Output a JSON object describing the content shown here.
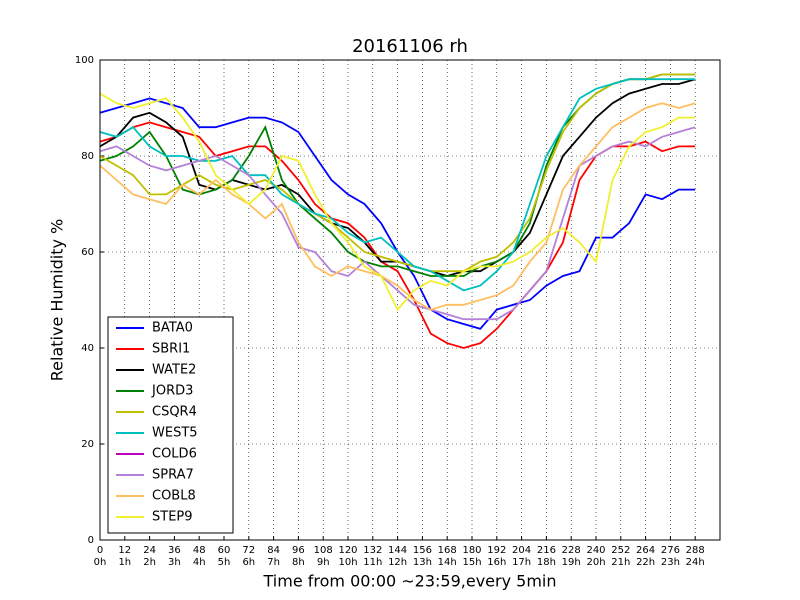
{
  "chart_data": {
    "type": "line",
    "title": "20161106 rh",
    "x_label": "Time from 00:00 ~23:59,every 5min",
    "y_label": "Relative Humidity %",
    "x": [
      0,
      8,
      16,
      24,
      32,
      40,
      48,
      56,
      64,
      72,
      80,
      88,
      96,
      104,
      112,
      120,
      128,
      136,
      144,
      152,
      160,
      168,
      176,
      184,
      192,
      200,
      208,
      216,
      224,
      232,
      240,
      248,
      256,
      264,
      272,
      280,
      288
    ],
    "series": [
      {
        "name": "BATA0",
        "color": "#0000ff",
        "values": [
          89,
          90,
          91,
          92,
          91,
          90,
          86,
          86,
          87,
          88,
          88,
          87,
          85,
          80,
          75,
          72,
          70,
          66,
          60,
          55,
          48,
          46,
          45,
          44,
          48,
          49,
          50,
          53,
          55,
          56,
          63,
          63,
          66,
          72,
          71,
          73,
          73
        ]
      },
      {
        "name": "SBRI1",
        "color": "#ff0000",
        "values": [
          83,
          84,
          86,
          87,
          86,
          85,
          84,
          80,
          81,
          82,
          82,
          79,
          75,
          70,
          67,
          66,
          63,
          58,
          56,
          50,
          43,
          41,
          40,
          41,
          44,
          48,
          52,
          56,
          62,
          75,
          80,
          82,
          82,
          83,
          81,
          82,
          82
        ]
      },
      {
        "name": "WATE2",
        "color": "#000000",
        "values": [
          82,
          84,
          88,
          89,
          87,
          84,
          74,
          73,
          75,
          74,
          73,
          74,
          72,
          68,
          66,
          65,
          62,
          58,
          58,
          57,
          56,
          55,
          56,
          56,
          58,
          60,
          64,
          72,
          80,
          84,
          88,
          91,
          93,
          94,
          95,
          95,
          96
        ]
      },
      {
        "name": "JORD3",
        "color": "#008000",
        "values": [
          79,
          80,
          82,
          85,
          80,
          73,
          72,
          73,
          75,
          80,
          86,
          75,
          70,
          67,
          64,
          60,
          58,
          57,
          57,
          56,
          55,
          55,
          55,
          57,
          58,
          60,
          66,
          78,
          86,
          90,
          93,
          95,
          96,
          96,
          97,
          97,
          97
        ]
      },
      {
        "name": "CSQR4",
        "color": "#bfbf00",
        "values": [
          80,
          78,
          76,
          72,
          72,
          74,
          76,
          74,
          73,
          74,
          75,
          73,
          70,
          68,
          66,
          63,
          60,
          59,
          58,
          57,
          56,
          56,
          56,
          58,
          59,
          62,
          67,
          77,
          85,
          90,
          93,
          95,
          96,
          96,
          97,
          97,
          97
        ]
      },
      {
        "name": "WEST5",
        "color": "#00bfbf",
        "values": [
          85,
          84,
          86,
          82,
          80,
          80,
          79,
          79,
          80,
          76,
          76,
          72,
          70,
          68,
          67,
          64,
          62,
          63,
          60,
          57,
          56,
          54,
          52,
          53,
          56,
          60,
          70,
          80,
          86,
          92,
          94,
          95,
          96,
          96,
          96,
          96,
          96
        ]
      },
      {
        "name": "COLD6",
        "color": "#bf00bf",
        "values": [
          null,
          null,
          null,
          null,
          null,
          null,
          null,
          null,
          null,
          null,
          null,
          null,
          null,
          null,
          null,
          null,
          null,
          null,
          null,
          null,
          null,
          null,
          null,
          null,
          null,
          null,
          null,
          null,
          null,
          null,
          null,
          null,
          null,
          null,
          null,
          null,
          null
        ]
      },
      {
        "name": "SPRA7",
        "color": "#b580d8",
        "values": [
          81,
          82,
          80,
          78,
          77,
          78,
          79,
          80,
          78,
          76,
          72,
          68,
          61,
          60,
          56,
          55,
          58,
          55,
          52,
          49,
          48,
          47,
          46,
          46,
          46,
          48,
          52,
          56,
          67,
          78,
          80,
          82,
          83,
          82,
          84,
          85,
          86
        ]
      },
      {
        "name": "COBL8",
        "color": "#ffbf60",
        "values": [
          78,
          75,
          72,
          71,
          70,
          74,
          72,
          75,
          72,
          70,
          67,
          70,
          62,
          57,
          55,
          57,
          56,
          55,
          53,
          50,
          48,
          49,
          49,
          50,
          51,
          53,
          58,
          62,
          73,
          78,
          82,
          86,
          88,
          90,
          91,
          90,
          91
        ]
      },
      {
        "name": "STEP9",
        "color": "#f0f030",
        "values": [
          93,
          91,
          90,
          91,
          92,
          88,
          83,
          76,
          73,
          70,
          73,
          80,
          79,
          72,
          66,
          62,
          57,
          55,
          48,
          52,
          54,
          53,
          56,
          57,
          57,
          58,
          60,
          63,
          65,
          62,
          58,
          75,
          82,
          85,
          86,
          88,
          88
        ]
      }
    ],
    "xlim": [
      0,
      300
    ],
    "ylim": [
      0,
      100
    ],
    "xticks": [
      0,
      12,
      24,
      36,
      48,
      60,
      72,
      84,
      96,
      108,
      120,
      132,
      144,
      156,
      168,
      180,
      192,
      204,
      216,
      228,
      240,
      252,
      264,
      276,
      288
    ],
    "xtick_sublabels": [
      "0h",
      "1h",
      "2h",
      "3h",
      "4h",
      "5h",
      "6h",
      "7h",
      "8h",
      "9h",
      "10h",
      "11h",
      "12h",
      "13h",
      "14h",
      "15h",
      "16h",
      "17h",
      "18h",
      "19h",
      "20h",
      "21h",
      "22h",
      "23h",
      "24h"
    ],
    "yticks": [
      0,
      20,
      40,
      60,
      80,
      100
    ],
    "grid": true,
    "legend": "lower left"
  }
}
